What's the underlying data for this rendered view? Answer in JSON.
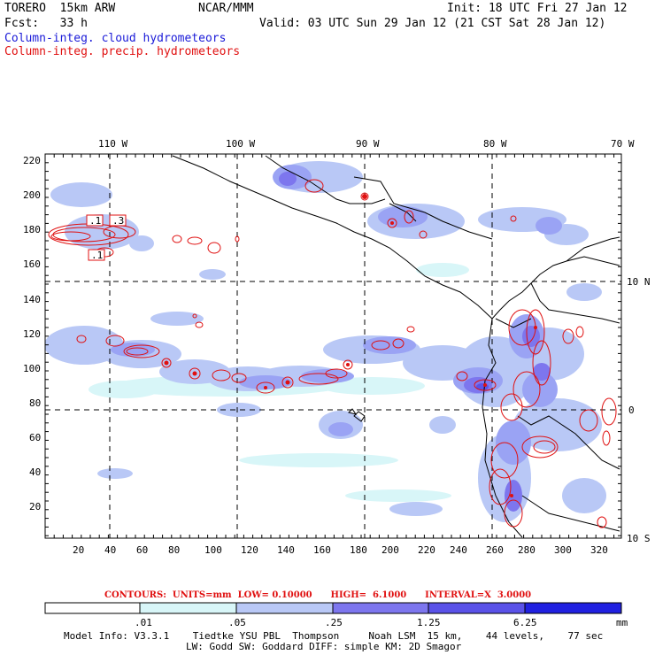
{
  "header": {
    "model": "TORERO  15km ARW",
    "org": "NCAR/MMM",
    "init": "Init: 18 UTC Fri 27 Jan 12",
    "fcst": "Fcst:   33 h",
    "valid": "Valid: 03 UTC Sun 29 Jan 12 (21 CST Sat 28 Jan 12)",
    "legend_cloud": "Column-integ. cloud hydrometeors",
    "legend_precip": "Column-integ. precip. hydrometeors"
  },
  "colors": {
    "cloud_text": "#1a1ad8",
    "precip_text": "#e01010",
    "contour": "#e01010",
    "shade_1": "#d8f6f8",
    "shade_2": "#b9c8f6",
    "shade_3": "#9aa3f4",
    "shade_4": "#7d76ee",
    "shade_5": "#5a52e8",
    "shade_6": "#2020e0"
  },
  "map": {
    "lon_labels": [
      "110 W",
      "100 W",
      "90 W",
      "80 W",
      "70 W"
    ],
    "lat_labels": [
      "10 N",
      "0",
      "10 S"
    ],
    "y_ticks": [
      "220",
      "200",
      "180",
      "160",
      "140",
      "120",
      "100",
      "80",
      "60",
      "40",
      "20"
    ],
    "x_ticks": [
      "20",
      "40",
      "60",
      "80",
      "100",
      "120",
      "140",
      "160",
      "180",
      "200",
      "220",
      "240",
      "260",
      "280",
      "300",
      "320"
    ],
    "contour_labels": [
      ".1",
      ".3",
      ".1"
    ]
  },
  "contours_line": "CONTOURS:  UNITS=mm  LOW= 0.10000      HIGH=  6.1000      INTERVAL=X  3.0000",
  "colorbar": {
    "values": [
      ".01",
      ".05",
      ".25",
      "1.25",
      "6.25"
    ],
    "units": "mm"
  },
  "footer": {
    "line1": "Model Info: V3.3.1    Tiedtke YSU PBL  Thompson     Noah LSM  15 km,    44 levels,    77 sec",
    "line2": "LW: Godd SW: Goddard DIFF: simple KM: 2D Smagor"
  }
}
